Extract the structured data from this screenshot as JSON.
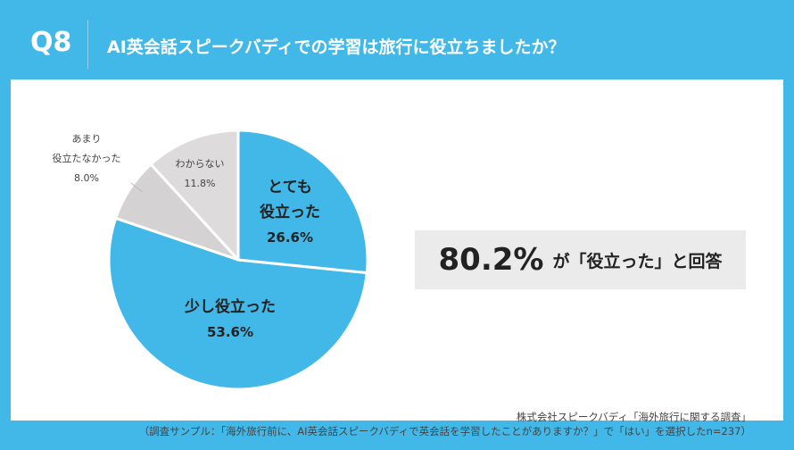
{
  "header": {
    "q": "Q8",
    "title": "AI英会話スピークバディでの学習は旅行に役立ちましたか？"
  },
  "chart_data": {
    "type": "pie",
    "title": "AI英会話スピークバディでの学習は旅行に役立ちましたか？",
    "slices": [
      {
        "label": "とても役立った",
        "value": 26.6,
        "value_label": "26.6%",
        "color": "#42b8e8"
      },
      {
        "label": "少し役立った",
        "value": 53.6,
        "value_label": "53.6%",
        "color": "#42b8e8"
      },
      {
        "label": "あまり役立たなかった",
        "value": 8.0,
        "value_label": "8.0%",
        "color": "#d5d2d4"
      },
      {
        "label": "わからない",
        "value": 11.8,
        "value_label": "11.8%",
        "color": "#dedbdc"
      }
    ]
  },
  "callout": {
    "percent": "80.2%",
    "text": "が「役立った」と回答"
  },
  "source": {
    "line1": "株式会社スピークバディ「海外旅行に関する調査」",
    "line2": "（調査サンプル：「海外旅行前に、AI英会話スピークバディで英会話を学習したことがありますか？」で「はい」を選択したn=237）"
  },
  "labels": {
    "l0a": "とても",
    "l0b": "役立った",
    "l1": "少し役立った",
    "l2a": "あまり",
    "l2b": "役立たなかった"
  }
}
